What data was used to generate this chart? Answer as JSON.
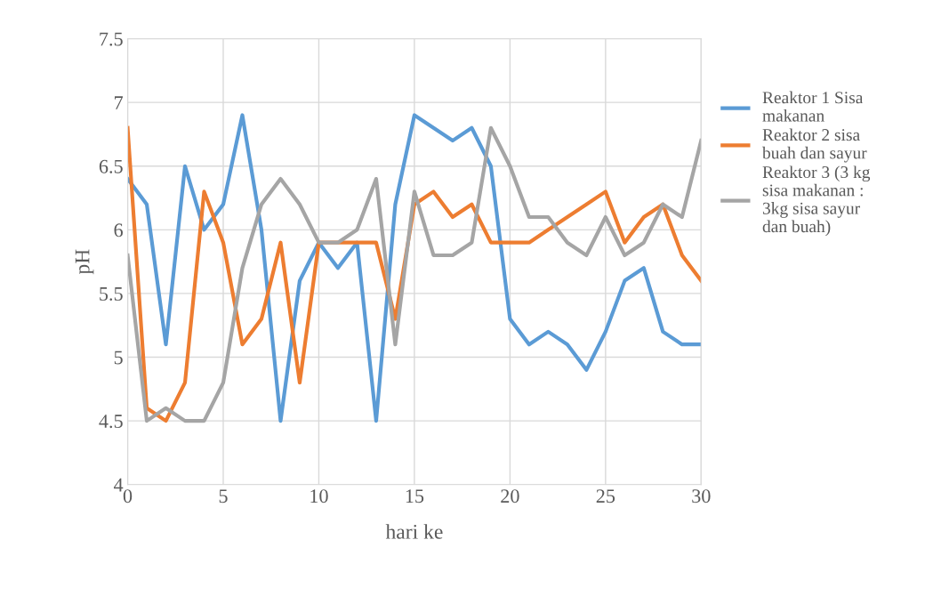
{
  "chart_data": {
    "type": "line",
    "xlabel": "hari ke",
    "ylabel": "pH",
    "x": [
      0,
      1,
      2,
      3,
      4,
      5,
      6,
      7,
      8,
      9,
      10,
      11,
      12,
      13,
      14,
      15,
      16,
      17,
      18,
      19,
      20,
      21,
      22,
      23,
      24,
      25,
      26,
      27,
      28,
      29,
      30
    ],
    "series": [
      {
        "name": "Reaktor 1 Sisa\nmakanan",
        "color": "#5b9bd5",
        "values": [
          6.4,
          6.2,
          5.1,
          6.5,
          6.0,
          6.2,
          6.9,
          6.0,
          4.5,
          5.6,
          5.9,
          5.7,
          5.9,
          4.5,
          6.2,
          6.9,
          6.8,
          6.7,
          6.8,
          6.5,
          5.3,
          5.1,
          5.2,
          5.1,
          4.9,
          5.2,
          5.6,
          5.7,
          5.2,
          5.1,
          5.1
        ]
      },
      {
        "name": "Reaktor 2 sisa\nbuah dan sayur",
        "color": "#ed7d31",
        "values": [
          6.8,
          4.6,
          4.5,
          4.8,
          6.3,
          5.9,
          5.1,
          5.3,
          5.9,
          4.8,
          5.9,
          5.9,
          5.9,
          5.9,
          5.3,
          6.2,
          6.3,
          6.1,
          6.2,
          5.9,
          5.9,
          5.9,
          6.0,
          6.1,
          6.2,
          6.3,
          5.9,
          6.1,
          6.2,
          5.8,
          5.6
        ]
      },
      {
        "name": "Reaktor 3 (3 kg\nsisa makanan :\n3kg sisa sayur\ndan buah)",
        "color": "#a5a5a5",
        "values": [
          5.8,
          4.5,
          4.6,
          4.5,
          4.5,
          4.8,
          5.7,
          6.2,
          6.4,
          6.2,
          5.9,
          5.9,
          6.0,
          6.4,
          5.1,
          6.3,
          5.8,
          5.8,
          5.9,
          6.8,
          6.5,
          6.1,
          6.1,
          5.9,
          5.8,
          6.1,
          5.8,
          5.9,
          6.2,
          6.1,
          6.7
        ]
      }
    ],
    "xlim": [
      0,
      30
    ],
    "xticks": [
      0,
      5,
      10,
      15,
      20,
      25,
      30
    ],
    "ylim": [
      4,
      7.5
    ],
    "yticks": [
      4,
      4.5,
      5,
      5.5,
      6,
      6.5,
      7,
      7.5
    ],
    "grid": true,
    "legend": "right",
    "marker": "none",
    "line_style": "solid"
  }
}
